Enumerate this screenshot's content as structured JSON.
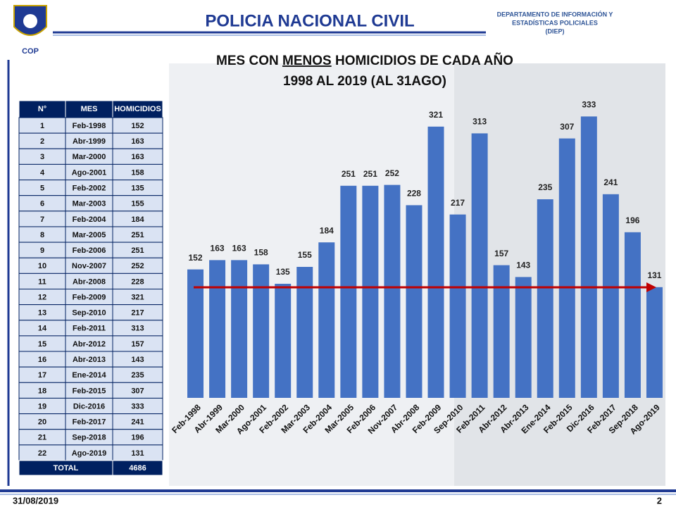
{
  "header": {
    "title": "POLICIA NACIONAL CIVIL",
    "logo_label": "COP",
    "department": [
      "DEPARTAMENTO DE INFORMACIÓN Y",
      "ESTADÍSTICAS POLICIALES",
      "(DIEP)"
    ]
  },
  "table": {
    "columns": [
      "N°",
      "MES",
      "HOMICIDIOS"
    ],
    "rows": [
      [
        1,
        "Feb-1998",
        152
      ],
      [
        2,
        "Abr-1999",
        163
      ],
      [
        3,
        "Mar-2000",
        163
      ],
      [
        4,
        "Ago-2001",
        158
      ],
      [
        5,
        "Feb-2002",
        135
      ],
      [
        6,
        "Mar-2003",
        155
      ],
      [
        7,
        "Feb-2004",
        184
      ],
      [
        8,
        "Mar-2005",
        251
      ],
      [
        9,
        "Feb-2006",
        251
      ],
      [
        10,
        "Nov-2007",
        252
      ],
      [
        11,
        "Abr-2008",
        228
      ],
      [
        12,
        "Feb-2009",
        321
      ],
      [
        13,
        "Sep-2010",
        217
      ],
      [
        14,
        "Feb-2011",
        313
      ],
      [
        15,
        "Abr-2012",
        157
      ],
      [
        16,
        "Abr-2013",
        143
      ],
      [
        17,
        "Ene-2014",
        235
      ],
      [
        18,
        "Feb-2015",
        307
      ],
      [
        19,
        "Dic-2016",
        333
      ],
      [
        20,
        "Feb-2017",
        241
      ],
      [
        21,
        "Sep-2018",
        196
      ],
      [
        22,
        "Ago-2019",
        131
      ]
    ],
    "total": [
      "TOTAL",
      4686
    ]
  },
  "chart_data": {
    "type": "bar",
    "title": [
      "MES CON ",
      "MENOS",
      " HOMICIDIOS DE CADA AÑO"
    ],
    "subtitle": "1998 AL 2019 (AL 31AGO)",
    "categories": [
      "Feb-1998",
      "Abr-1999",
      "Mar-2000",
      "Ago-2001",
      "Feb-2002",
      "Mar-2003",
      "Feb-2004",
      "Mar-2005",
      "Feb-2006",
      "Nov-2007",
      "Abr-2008",
      "Feb-2009",
      "Sep-2010",
      "Feb-2011",
      "Abr-2012",
      "Abr-2013",
      "Ene-2014",
      "Feb-2015",
      "Dic-2016",
      "Feb-2017",
      "Sep-2018",
      "Ago-2019"
    ],
    "values": [
      152,
      163,
      163,
      158,
      135,
      155,
      184,
      251,
      251,
      252,
      228,
      321,
      217,
      313,
      157,
      143,
      235,
      307,
      333,
      241,
      196,
      131
    ],
    "color": "#4472c4",
    "ylim": [
      0,
      335
    ]
  },
  "footer": {
    "date": "31/08/2019",
    "page": 2
  }
}
